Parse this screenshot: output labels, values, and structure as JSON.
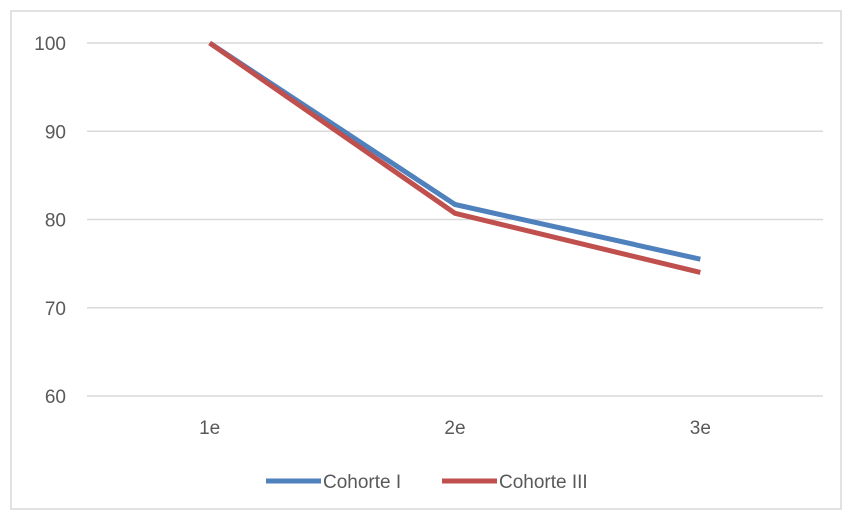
{
  "chart_data": {
    "type": "line",
    "title": "",
    "xlabel": "",
    "ylabel": "",
    "categories": [
      "1e",
      "2e",
      "3e"
    ],
    "ylim": [
      60,
      100
    ],
    "yticks": [
      60,
      70,
      80,
      90,
      100
    ],
    "grid": true,
    "legend_position": "bottom",
    "series": [
      {
        "name": "Cohorte I",
        "values": [
          100,
          81.7,
          75.5
        ],
        "color": "#4f81bd"
      },
      {
        "name": "Cohorte III",
        "values": [
          100,
          80.7,
          74.0
        ],
        "color": "#c0504d"
      }
    ]
  }
}
